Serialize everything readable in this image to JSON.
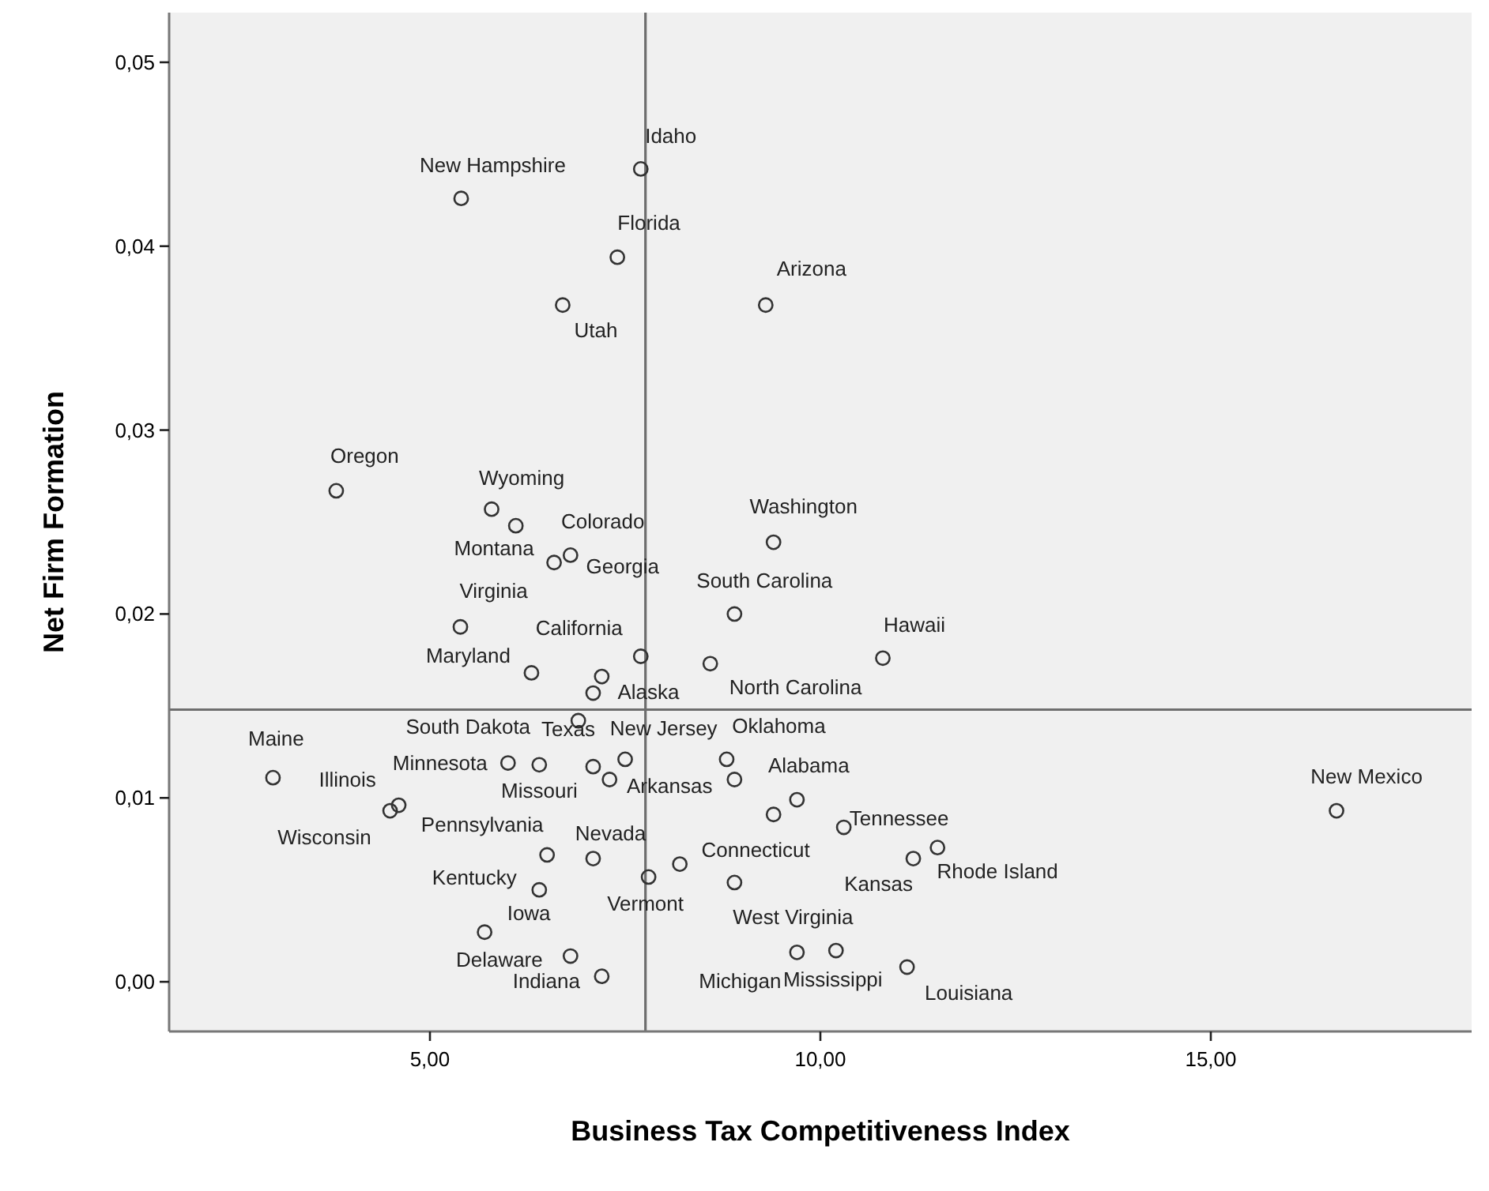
{
  "chart_data": {
    "type": "scatter",
    "xlabel": "Business Tax Competitiveness Index",
    "ylabel": "Net Firm Formation",
    "xlim": [
      1.66,
      18.34
    ],
    "ylim": [
      -0.0027,
      0.0527
    ],
    "xticks": [
      {
        "value": 5,
        "label": "5,00"
      },
      {
        "value": 10,
        "label": "10,00"
      },
      {
        "value": 15,
        "label": "15,00"
      }
    ],
    "yticks": [
      {
        "value": 0,
        "label": "0,00"
      },
      {
        "value": 0.01,
        "label": "0,01"
      },
      {
        "value": 0.02,
        "label": "0,02"
      },
      {
        "value": 0.03,
        "label": "0,03"
      },
      {
        "value": 0.04,
        "label": "0,04"
      },
      {
        "value": 0.05,
        "label": "0,05"
      }
    ],
    "marker": "circle",
    "grid": false,
    "legend": false,
    "ref_lines": [
      {
        "axis": "x",
        "value": 7.76,
        "color": "#6e6e6e"
      },
      {
        "axis": "y",
        "value": 0.0148,
        "color": "#6e6e6e"
      }
    ],
    "x": [
      7.7,
      5.4,
      7.4,
      6.7,
      9.3,
      3.8,
      5.79,
      6.1,
      9.4,
      6.59,
      6.8,
      8.9,
      5.39,
      7.7,
      8.59,
      6.3,
      7.2,
      7.09,
      6.9,
      2.99,
      6.0,
      6.4,
      7.09,
      7.5,
      7.3,
      8.8,
      8.9,
      9.7,
      9.4,
      4.49,
      4.6,
      6.5,
      7.09,
      8.2,
      7.8,
      8.9,
      6.4,
      5.7,
      6.8,
      7.2,
      9.7,
      10.8,
      16.61,
      10.3,
      11.19,
      11.5,
      10.2,
      11.11
    ],
    "values": [
      0.0442,
      0.0426,
      0.0394,
      0.0368,
      0.0368,
      0.0267,
      0.0257,
      0.0248,
      0.0239,
      0.0228,
      0.0232,
      0.02,
      0.0193,
      0.0177,
      0.0173,
      0.0168,
      0.0166,
      0.0157,
      0.0142,
      0.0111,
      0.0119,
      0.0118,
      0.0117,
      0.0121,
      0.011,
      0.0121,
      0.011,
      0.0099,
      0.0091,
      0.0093,
      0.0096,
      0.0069,
      0.0067,
      0.0064,
      0.0057,
      0.0054,
      0.005,
      0.0027,
      0.0014,
      0.0003,
      0.0016,
      0.0176,
      0.0093,
      0.0084,
      0.0067,
      0.0073,
      0.0017,
      0.0008
    ],
    "value_labels": [
      "Idaho",
      "New Hampshire",
      "Florida",
      "Utah",
      "Arizona",
      "Oregon",
      "Wyoming",
      "Colorado",
      "Washington",
      "Montana",
      "Georgia",
      "South Carolina",
      "Virginia",
      "California",
      "North Carolina",
      "Maryland",
      null,
      "Alaska",
      "New Jersey",
      "Maine",
      "Minnesota",
      "South Dakota",
      "Missouri",
      "Texas",
      "Arkansas",
      "Oklahoma",
      "Alabama",
      null,
      null,
      "Illinois",
      "Wisconsin",
      "Pennsylvania",
      "Nevada",
      "Connecticut",
      "Vermont",
      "West Virginia",
      "Kentucky",
      "Iowa",
      "Delaware",
      "Indiana",
      "Michigan",
      "Hawaii",
      "New Mexico",
      "Tennessee",
      "Kansas",
      "Rhode Island",
      "Mississippi",
      "Louisiana"
    ],
    "color": "#333333"
  }
}
